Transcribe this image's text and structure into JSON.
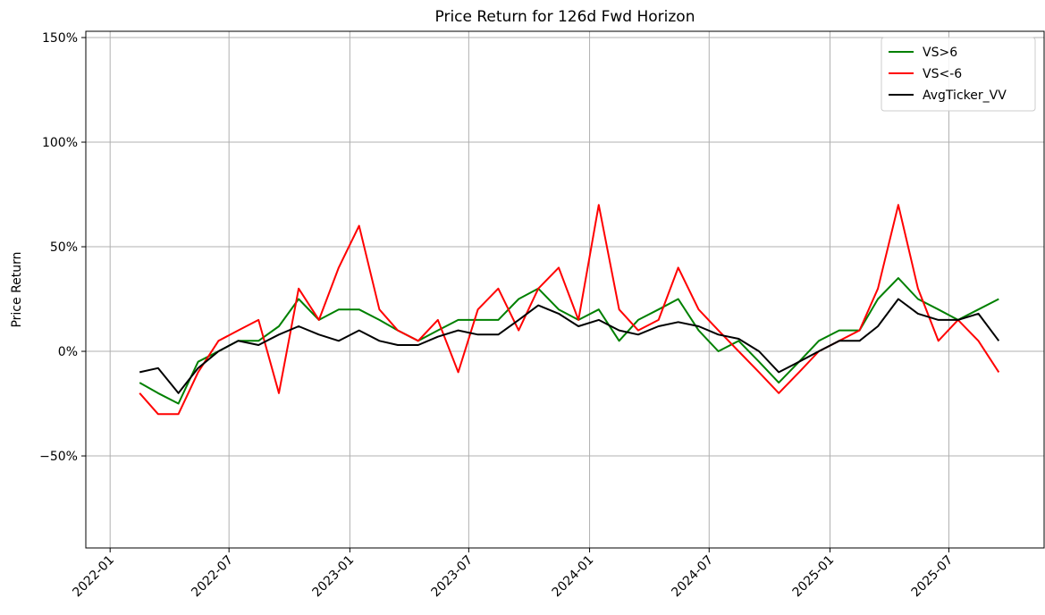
{
  "chart_data": {
    "type": "line",
    "title": "Price Return for 126d Fwd Horizon",
    "y_label": "Price Return",
    "x": [
      "2022-02",
      "2022-03",
      "2022-04",
      "2022-05",
      "2022-06",
      "2022-07",
      "2022-08",
      "2022-09",
      "2022-10",
      "2022-11",
      "2022-12",
      "2023-01",
      "2023-02",
      "2023-03",
      "2023-04",
      "2023-05",
      "2023-06",
      "2023-07",
      "2023-08",
      "2023-09",
      "2023-10",
      "2023-11",
      "2023-12",
      "2024-01",
      "2024-02",
      "2024-03",
      "2024-04",
      "2024-05",
      "2024-06",
      "2024-07",
      "2024-08",
      "2024-09",
      "2024-10",
      "2024-11",
      "2024-12",
      "2025-01",
      "2025-02",
      "2025-03",
      "2025-04",
      "2025-05",
      "2025-06",
      "2025-07",
      "2025-08",
      "2025-09"
    ],
    "series": [
      {
        "name": "VS>6",
        "color": "#008000",
        "values": [
          -15,
          -20,
          -25,
          -5,
          0,
          5,
          5,
          12,
          25,
          15,
          20,
          20,
          15,
          10,
          5,
          10,
          15,
          15,
          15,
          25,
          30,
          20,
          15,
          20,
          5,
          15,
          20,
          25,
          10,
          0,
          5,
          -5,
          -15,
          -5,
          5,
          10,
          10,
          25,
          35,
          25,
          20,
          15,
          20,
          25
        ]
      },
      {
        "name": "VS<-6",
        "color": "#ff0000",
        "values": [
          -20,
          -30,
          -30,
          -10,
          5,
          10,
          15,
          -20,
          30,
          15,
          40,
          60,
          20,
          10,
          5,
          15,
          -10,
          20,
          30,
          10,
          30,
          40,
          15,
          70,
          20,
          10,
          15,
          40,
          20,
          10,
          0,
          -10,
          -20,
          -10,
          0,
          5,
          10,
          30,
          70,
          30,
          5,
          15,
          5,
          -10
        ]
      },
      {
        "name": "AvgTicker_VV",
        "color": "#000000",
        "values": [
          -10,
          -8,
          -20,
          -8,
          0,
          5,
          3,
          8,
          12,
          8,
          5,
          10,
          5,
          3,
          3,
          7,
          10,
          8,
          8,
          15,
          22,
          18,
          12,
          15,
          10,
          8,
          12,
          14,
          12,
          8,
          6,
          0,
          -10,
          -5,
          0,
          5,
          5,
          12,
          25,
          18,
          15,
          15,
          18,
          5
        ]
      }
    ],
    "xlim": [
      "2021-11-25",
      "2025-11-23"
    ],
    "xticks": [
      {
        "value": "2022-01-01",
        "label": "2022-01"
      },
      {
        "value": "2022-07-01",
        "label": "2022-07"
      },
      {
        "value": "2023-01-01",
        "label": "2023-01"
      },
      {
        "value": "2023-07-01",
        "label": "2023-07"
      },
      {
        "value": "2024-01-01",
        "label": "2024-01"
      },
      {
        "value": "2024-07-01",
        "label": "2024-07"
      },
      {
        "value": "2025-01-01",
        "label": "2025-01"
      },
      {
        "value": "2025-07-01",
        "label": "2025-07"
      }
    ],
    "ylim": [
      -94,
      153
    ],
    "yticks": [
      {
        "value": -50,
        "label": "−50%"
      },
      {
        "value": 0,
        "label": "0%"
      },
      {
        "value": 50,
        "label": "50%"
      },
      {
        "value": 100,
        "label": "100%"
      },
      {
        "value": 150,
        "label": "150%"
      }
    ],
    "grid": true,
    "legend": "upper right"
  }
}
